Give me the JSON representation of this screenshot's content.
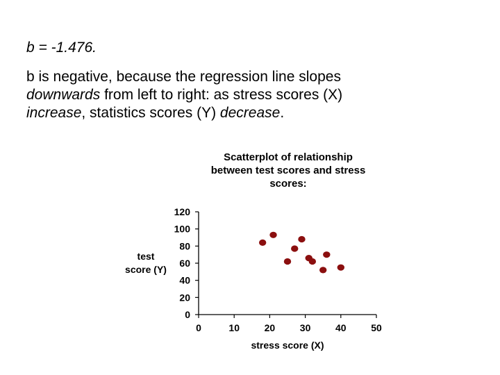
{
  "slide": {
    "equation": "b = -1.476.",
    "explanation": {
      "part1": "b is negative, because the regression line slopes",
      "downwards": "downwards",
      "part2": " from left to right: as stress scores (X)",
      "increase": "increase",
      "part3": ", statistics scores (Y) ",
      "decrease": "decrease",
      "part4": "."
    }
  },
  "chart_data": {
    "type": "scatter",
    "title_lines": [
      "Scatterplot of relationship",
      "between test scores and stress",
      "scores:"
    ],
    "xlabel": "stress score (X)",
    "ylabel_lines": [
      "test",
      "score (Y)"
    ],
    "xlim": [
      0,
      50
    ],
    "ylim": [
      0,
      120
    ],
    "xticks": [
      "0",
      "10",
      "20",
      "30",
      "40",
      "50"
    ],
    "yticks": [
      "0",
      "20",
      "40",
      "60",
      "80",
      "100",
      "120"
    ],
    "grid": false,
    "point_color": "#8b0f0f",
    "points": [
      {
        "x": 18,
        "y": 84
      },
      {
        "x": 21,
        "y": 93
      },
      {
        "x": 25,
        "y": 62
      },
      {
        "x": 27,
        "y": 77
      },
      {
        "x": 29,
        "y": 88
      },
      {
        "x": 31,
        "y": 66
      },
      {
        "x": 32,
        "y": 62
      },
      {
        "x": 35,
        "y": 52
      },
      {
        "x": 36,
        "y": 70
      },
      {
        "x": 40,
        "y": 55
      }
    ]
  }
}
